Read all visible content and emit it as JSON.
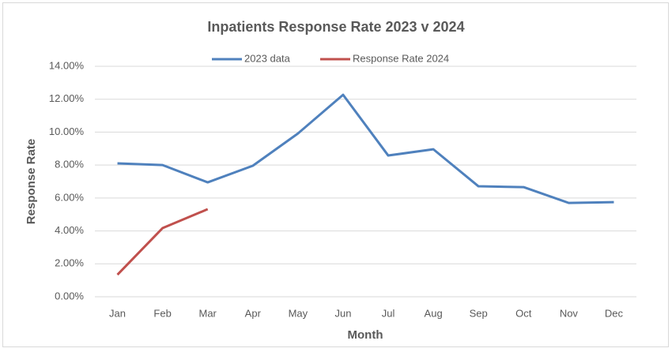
{
  "chart_data": {
    "type": "line",
    "title": "Inpatients Response Rate 2023 v 2024",
    "x_label": "Month",
    "y_label": "Response Rate",
    "categories": [
      "Jan",
      "Feb",
      "Mar",
      "Apr",
      "May",
      "Jun",
      "Jul",
      "Aug",
      "Sep",
      "Oct",
      "Nov",
      "Dec"
    ],
    "series": [
      {
        "name": "2023 data",
        "color": "#4f81bd",
        "values": [
          8.1,
          8.0,
          6.95,
          7.96,
          9.92,
          12.27,
          8.58,
          8.96,
          6.71,
          6.66,
          5.7,
          5.75
        ]
      },
      {
        "name": "Response Rate 2024",
        "color": "#c0504d",
        "values": [
          1.34,
          4.17,
          5.32,
          null,
          null,
          null,
          null,
          null,
          null,
          null,
          null,
          null
        ]
      }
    ],
    "ylim": [
      0,
      14
    ],
    "yticks": [
      {
        "value": 0,
        "label": "0.00%"
      },
      {
        "value": 2,
        "label": "2.00%"
      },
      {
        "value": 4,
        "label": "4.00%"
      },
      {
        "value": 6,
        "label": "6.00%"
      },
      {
        "value": 8,
        "label": "8.00%"
      },
      {
        "value": 10,
        "label": "10.00%"
      },
      {
        "value": 12,
        "label": "12.00%"
      },
      {
        "value": 14,
        "label": "14.00%"
      }
    ],
    "grid": true,
    "legend": "top"
  }
}
